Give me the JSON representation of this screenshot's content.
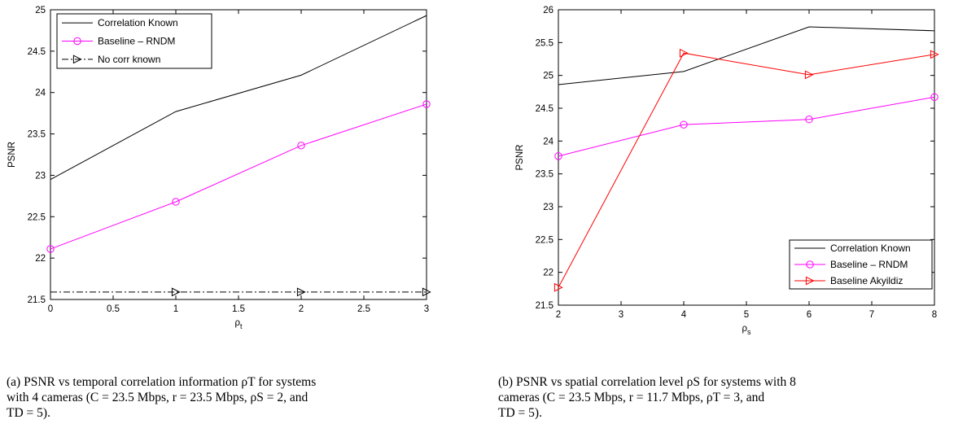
{
  "chart_data": [
    {
      "type": "line",
      "title": "",
      "xlabel": "ρt",
      "ylabel": "PSNR",
      "xlim": [
        0,
        3
      ],
      "ylim": [
        21.5,
        25
      ],
      "xticks": [
        0,
        0.5,
        1,
        1.5,
        2,
        2.5,
        3
      ],
      "xtick_labels": [
        "0",
        "0.5",
        "1",
        "1.5",
        "2",
        "2.5",
        "3"
      ],
      "yticks": [
        21.5,
        22,
        22.5,
        23,
        23.5,
        24,
        24.5,
        25
      ],
      "ytick_labels": [
        "21.5",
        "22",
        "22.5",
        "23",
        "23.5",
        "24",
        "24.5",
        "25"
      ],
      "legend_position": "top-left",
      "grid": false,
      "series": [
        {
          "name": "Correlation Known",
          "color": "#000000",
          "style": "solid",
          "marker": "none",
          "x": [
            0,
            1,
            2,
            3
          ],
          "y": [
            22.95,
            23.77,
            24.21,
            24.93
          ]
        },
        {
          "name": "Baseline – RNDM",
          "color": "#ff00ff",
          "style": "solid",
          "marker": "circle",
          "x": [
            0,
            1,
            2,
            3
          ],
          "y": [
            22.11,
            22.68,
            23.36,
            23.86
          ]
        },
        {
          "name": "No corr known",
          "color": "#000000",
          "style": "dashdot",
          "marker": "triangle-right",
          "x": [
            0,
            1,
            2,
            3
          ],
          "y": [
            21.59,
            21.59,
            21.59,
            21.59
          ]
        }
      ]
    },
    {
      "type": "line",
      "title": "",
      "xlabel": "ρs",
      "ylabel": "PSNR",
      "xlim": [
        2,
        8
      ],
      "ylim": [
        21.5,
        26
      ],
      "xticks": [
        2,
        3,
        4,
        5,
        6,
        7,
        8
      ],
      "xtick_labels": [
        "2",
        "3",
        "4",
        "5",
        "6",
        "7",
        "8"
      ],
      "yticks": [
        21.5,
        22,
        22.5,
        23,
        23.5,
        24,
        24.5,
        25,
        25.5,
        26
      ],
      "ytick_labels": [
        "21.5",
        "22",
        "22.5",
        "23",
        "23.5",
        "24",
        "24.5",
        "25",
        "25.5",
        "26"
      ],
      "legend_position": "bottom-right",
      "grid": false,
      "series": [
        {
          "name": "Correlation Known",
          "color": "#000000",
          "style": "solid",
          "marker": "none",
          "x": [
            2,
            4,
            6,
            8
          ],
          "y": [
            24.86,
            25.06,
            25.74,
            25.68
          ]
        },
        {
          "name": "Baseline – RNDM",
          "color": "#ff00ff",
          "style": "solid",
          "marker": "circle",
          "x": [
            2,
            4,
            6,
            8
          ],
          "y": [
            23.77,
            24.25,
            24.33,
            24.67
          ]
        },
        {
          "name": "Baseline   Akyildiz",
          "color": "#ff0000",
          "style": "solid",
          "marker": "triangle-right",
          "x": [
            2,
            4,
            6,
            8
          ],
          "y": [
            21.77,
            25.34,
            25.01,
            25.32
          ]
        }
      ]
    }
  ],
  "captions": {
    "a": {
      "line1": "(a) PSNR vs temporal correlation information ρT for systems",
      "line2": "with 4 cameras (C = 23.5 Mbps, r = 23.5 Mbps, ρS = 2, and",
      "line3": "TD = 5)."
    },
    "b": {
      "line1": "(b) PSNR vs spatial correlation level ρS for systems with 8",
      "line2": "cameras (C = 23.5 Mbps, r = 11.7 Mbps, ρT = 3, and",
      "line3": "TD = 5)."
    }
  }
}
